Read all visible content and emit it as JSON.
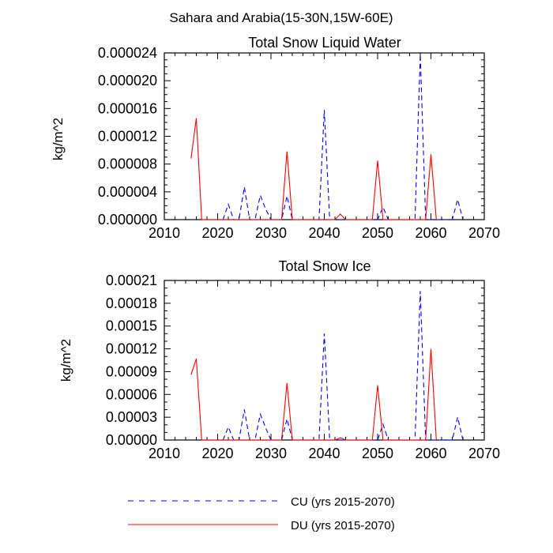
{
  "figure_title": "Sahara and Arabia(15-30N,15W-60E)",
  "legend": [
    {
      "key": "CU",
      "label": "CU (yrs 2015-2070)",
      "color": "#0000ff",
      "dashed": true
    },
    {
      "key": "DU",
      "label": "DU (yrs 2015-2070)",
      "color": "#ff0000",
      "dashed": false
    }
  ],
  "chart_data": [
    {
      "type": "line",
      "title": "Total Snow Liquid Water",
      "xlabel": "",
      "ylabel": "kg/m^2",
      "xlim": [
        2010,
        2070
      ],
      "ylim": [
        0,
        2.4e-05
      ],
      "x_ticks": [
        2010,
        2020,
        2030,
        2040,
        2050,
        2060,
        2070
      ],
      "x_tick_labels": [
        "2010",
        "2020",
        "2030",
        "2040",
        "2050",
        "2060",
        "2070"
      ],
      "y_ticks": [
        0,
        4e-06,
        8e-06,
        1.2e-05,
        1.6e-05,
        2e-05,
        2.4e-05
      ],
      "y_tick_labels": [
        "0.000000",
        "0.000004",
        "0.000008",
        "0.000012",
        "0.000016",
        "0.000020",
        "0.000024"
      ],
      "series": [
        {
          "name": "CU",
          "color": "#0000ff",
          "dashed": true,
          "x": [
            2021,
            2022,
            2023,
            2024,
            2025,
            2026,
            2027,
            2028,
            2029,
            2030,
            2031,
            2032,
            2033,
            2034,
            2035,
            2036,
            2037,
            2038,
            2039,
            2040,
            2041,
            2042,
            2043,
            2044,
            2045,
            2046,
            2047,
            2048,
            2049,
            2050,
            2051,
            2052,
            2053,
            2054,
            2055,
            2056,
            2057,
            2058,
            2059,
            2060,
            2061,
            2062,
            2063,
            2064,
            2065,
            2066
          ],
          "values": [
            0,
            2.2e-06,
            0,
            0,
            4.7e-06,
            0,
            0,
            3.5e-06,
            1.5e-06,
            0,
            0,
            0,
            3.4e-06,
            0,
            0,
            0,
            0,
            0,
            0,
            1.58e-05,
            0,
            0,
            0,
            0,
            0,
            0,
            0,
            0,
            0,
            0,
            1.8e-06,
            0,
            0,
            0,
            0,
            0,
            0,
            2.38e-05,
            0,
            0,
            0,
            0,
            0,
            0,
            2.9e-06,
            0
          ]
        },
        {
          "name": "DU",
          "color": "#ff0000",
          "dashed": false,
          "x": [
            2015,
            2016,
            2017,
            2018,
            2019,
            2020,
            2021,
            2022,
            2023,
            2024,
            2025,
            2026,
            2027,
            2028,
            2029,
            2030,
            2031,
            2032,
            2033,
            2034,
            2035,
            2036,
            2037,
            2038,
            2039,
            2040,
            2041,
            2042,
            2043,
            2044,
            2045,
            2046,
            2047,
            2048,
            2049,
            2050,
            2051,
            2052,
            2053,
            2054,
            2055,
            2056,
            2057,
            2058,
            2059,
            2060,
            2061
          ],
          "values": [
            8.8e-06,
            1.46e-05,
            0,
            0,
            0,
            0,
            0,
            0,
            0,
            0,
            0,
            0,
            0,
            0,
            0,
            0,
            0,
            0,
            9.8e-06,
            0,
            0,
            0,
            0,
            0,
            0,
            0,
            0,
            0,
            8e-07,
            0,
            0,
            0,
            0,
            0,
            0,
            8.5e-06,
            0,
            0,
            0,
            0,
            0,
            0,
            0,
            0,
            0,
            9.4e-06,
            0
          ]
        }
      ]
    },
    {
      "type": "line",
      "title": "Total Snow Ice",
      "xlabel": "",
      "ylabel": "kg/m^2",
      "xlim": [
        2010,
        2070
      ],
      "ylim": [
        0,
        0.00021
      ],
      "x_ticks": [
        2010,
        2020,
        2030,
        2040,
        2050,
        2060,
        2070
      ],
      "x_tick_labels": [
        "2010",
        "2020",
        "2030",
        "2040",
        "2050",
        "2060",
        "2070"
      ],
      "y_ticks": [
        0,
        3e-05,
        6e-05,
        9e-05,
        0.00012,
        0.00015,
        0.00018,
        0.00021
      ],
      "y_tick_labels": [
        "0.00000",
        "0.00003",
        "0.00006",
        "0.00009",
        "0.00012",
        "0.00015",
        "0.00018",
        "0.00021"
      ],
      "series": [
        {
          "name": "CU",
          "color": "#0000ff",
          "dashed": true,
          "x": [
            2021,
            2022,
            2023,
            2024,
            2025,
            2026,
            2027,
            2028,
            2029,
            2030,
            2031,
            2032,
            2033,
            2034,
            2035,
            2036,
            2037,
            2038,
            2039,
            2040,
            2041,
            2042,
            2043,
            2044,
            2045,
            2046,
            2047,
            2048,
            2049,
            2050,
            2051,
            2052,
            2053,
            2054,
            2055,
            2056,
            2057,
            2058,
            2059,
            2060,
            2061,
            2062,
            2063,
            2064,
            2065,
            2066
          ],
          "values": [
            0,
            1.7e-05,
            0,
            0,
            4e-05,
            0,
            0,
            3.4e-05,
            1.6e-05,
            0,
            0,
            0,
            2.8e-05,
            0,
            0,
            0,
            0,
            0,
            0,
            0.00014,
            0,
            0,
            0,
            0,
            0,
            0,
            0,
            0,
            0,
            0,
            2.1e-05,
            0,
            0,
            0,
            0,
            0,
            0,
            0.000196,
            0,
            0,
            0,
            0,
            0,
            0,
            3e-05,
            0
          ]
        },
        {
          "name": "DU",
          "color": "#ff0000",
          "dashed": false,
          "x": [
            2015,
            2016,
            2017,
            2018,
            2019,
            2020,
            2021,
            2022,
            2023,
            2024,
            2025,
            2026,
            2027,
            2028,
            2029,
            2030,
            2031,
            2032,
            2033,
            2034,
            2035,
            2036,
            2037,
            2038,
            2039,
            2040,
            2041,
            2042,
            2043,
            2044,
            2045,
            2046,
            2047,
            2048,
            2049,
            2050,
            2051,
            2052,
            2053,
            2054,
            2055,
            2056,
            2057,
            2058,
            2059,
            2060,
            2061
          ],
          "values": [
            8.6e-05,
            0.000107,
            0,
            0,
            0,
            0,
            0,
            0,
            0,
            0,
            0,
            0,
            0,
            0,
            0,
            0,
            0,
            0,
            7.5e-05,
            0,
            0,
            0,
            0,
            0,
            0,
            0,
            0,
            0,
            3e-06,
            0,
            0,
            0,
            0,
            0,
            0,
            7.2e-05,
            0,
            0,
            0,
            0,
            0,
            0,
            0,
            0,
            0,
            0.00012,
            0
          ]
        }
      ]
    }
  ]
}
